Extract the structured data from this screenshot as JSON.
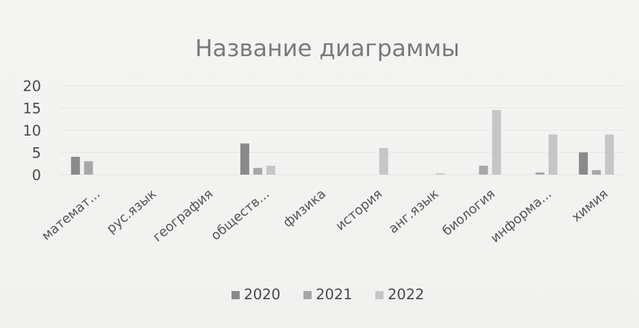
{
  "chart_data": {
    "type": "bar",
    "title": "Название диаграммы",
    "categories": [
      "математ...",
      "рус.язык",
      "география",
      "обществ...",
      "физика",
      "история",
      "анг.язык",
      "биология",
      "информа...",
      "химия"
    ],
    "series": [
      {
        "name": "2020",
        "color": "#8a8a8a",
        "values": [
          4,
          0,
          0,
          7,
          0,
          0,
          0,
          0,
          0,
          5
        ]
      },
      {
        "name": "2021",
        "color": "#a7a7a7",
        "values": [
          3,
          0,
          0,
          1.5,
          0,
          0,
          0,
          2,
          0.5,
          1
        ]
      },
      {
        "name": "2022",
        "color": "#c6c6c6",
        "values": [
          0,
          0,
          0,
          2,
          0,
          6,
          0.3,
          14.5,
          9,
          9
        ]
      }
    ],
    "yticks": [
      0,
      5,
      10,
      15,
      20
    ],
    "ylim": [
      0,
      20
    ],
    "grid": true,
    "legend": "bottom"
  }
}
